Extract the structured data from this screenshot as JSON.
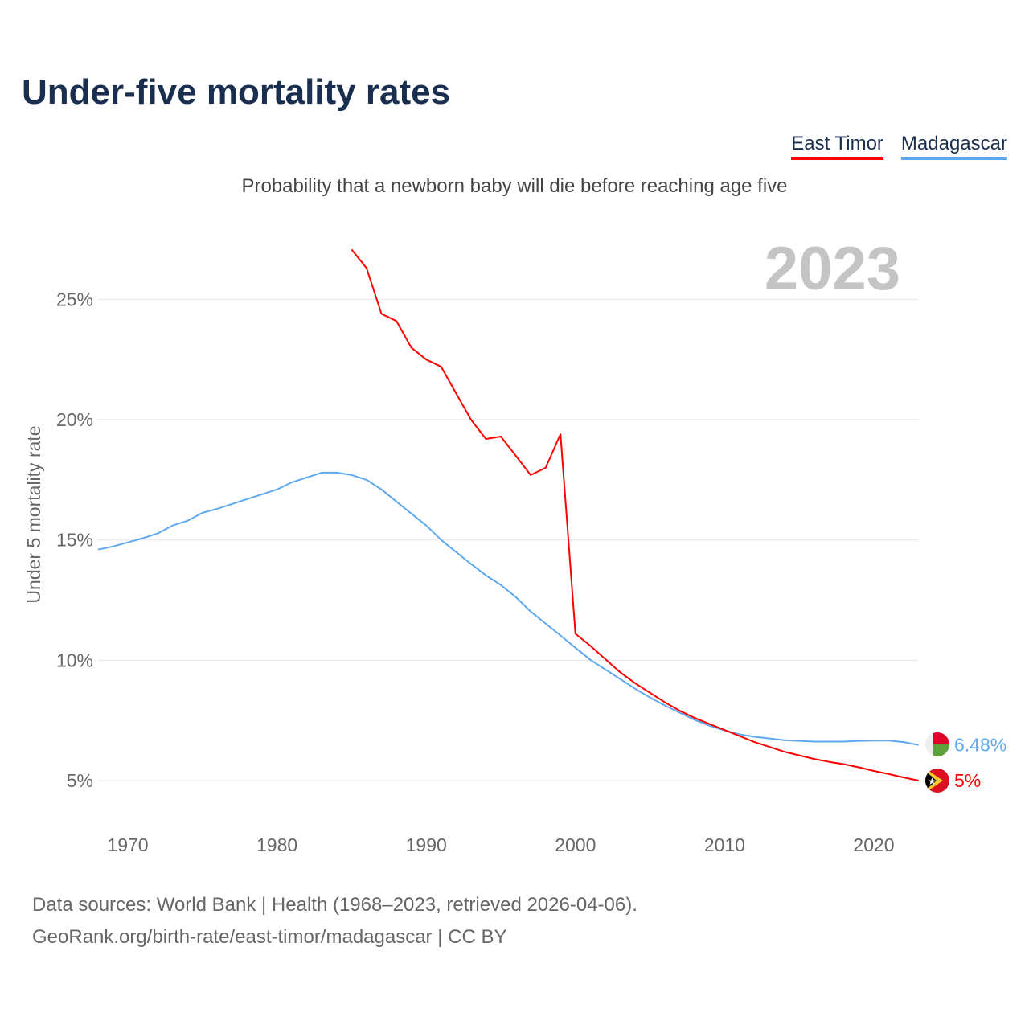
{
  "title": "Under-five mortality rates",
  "subtitle": "Probability that a newborn baby will die before reaching age five",
  "legend": [
    {
      "label": "East Timor",
      "color": "#ff0000"
    },
    {
      "label": "Madagascar",
      "color": "#5ea8f0"
    }
  ],
  "source_line1": "Data sources: World Bank | Health (1968–2023, retrieved 2026-04-06).",
  "source_line2": "GeoRank.org/birth-rate/east-timor/madagascar | CC BY",
  "chart_data": {
    "type": "line",
    "title": "Under-five mortality rates",
    "ylabel": "Under 5 mortality rate",
    "xlabel": "",
    "year_label": "2023",
    "xlim": [
      1968,
      2023
    ],
    "ylim": [
      3.5,
      27.5
    ],
    "x_ticks": [
      1970,
      1980,
      1990,
      2000,
      2010,
      2020
    ],
    "y_ticks": [
      5,
      10,
      15,
      20,
      25
    ],
    "y_tick_labels": [
      "5%",
      "10%",
      "15%",
      "20%",
      "25%"
    ],
    "grid": true,
    "legend_position": "top-right",
    "series": [
      {
        "name": "East Timor",
        "color": "#ff0000",
        "end_label": "5%",
        "x": [
          1985,
          1986,
          1987,
          1988,
          1989,
          1990,
          1991,
          1992,
          1993,
          1994,
          1995,
          1996,
          1997,
          1998,
          1999,
          2000,
          2001,
          2002,
          2003,
          2004,
          2005,
          2006,
          2007,
          2008,
          2009,
          2010,
          2011,
          2012,
          2013,
          2014,
          2015,
          2016,
          2017,
          2018,
          2019,
          2020,
          2021,
          2022,
          2023
        ],
        "values": [
          27.07,
          26.3,
          24.4,
          24.1,
          23.0,
          22.5,
          22.2,
          21.1,
          20.0,
          19.2,
          19.3,
          18.5,
          17.7,
          18.0,
          19.4,
          11.1,
          10.6,
          10.05,
          9.5,
          9.05,
          8.65,
          8.25,
          7.9,
          7.6,
          7.35,
          7.1,
          6.85,
          6.6,
          6.4,
          6.2,
          6.05,
          5.9,
          5.78,
          5.68,
          5.55,
          5.4,
          5.27,
          5.13,
          5.0
        ]
      },
      {
        "name": "Madagascar",
        "color": "#5ea8f0",
        "end_label": "6.48%",
        "x": [
          1968,
          1969,
          1970,
          1971,
          1972,
          1973,
          1974,
          1975,
          1976,
          1977,
          1978,
          1979,
          1980,
          1981,
          1982,
          1983,
          1984,
          1985,
          1986,
          1987,
          1988,
          1989,
          1990,
          1991,
          1992,
          1993,
          1994,
          1995,
          1996,
          1997,
          1998,
          1999,
          2000,
          2001,
          2002,
          2003,
          2004,
          2005,
          2006,
          2007,
          2008,
          2009,
          2010,
          2011,
          2012,
          2013,
          2014,
          2015,
          2016,
          2017,
          2018,
          2019,
          2020,
          2021,
          2022,
          2023
        ],
        "values": [
          14.6,
          14.73,
          14.9,
          15.07,
          15.27,
          15.6,
          15.8,
          16.13,
          16.3,
          16.5,
          16.7,
          16.9,
          17.1,
          17.4,
          17.6,
          17.8,
          17.8,
          17.7,
          17.5,
          17.1,
          16.6,
          16.1,
          15.6,
          15.0,
          14.5,
          14.0,
          13.53,
          13.13,
          12.63,
          12.03,
          11.53,
          11.03,
          10.52,
          10.02,
          9.62,
          9.22,
          8.82,
          8.45,
          8.12,
          7.82,
          7.52,
          7.28,
          7.08,
          6.92,
          6.82,
          6.75,
          6.68,
          6.65,
          6.62,
          6.62,
          6.62,
          6.65,
          6.66,
          6.66,
          6.6,
          6.48
        ]
      }
    ]
  }
}
